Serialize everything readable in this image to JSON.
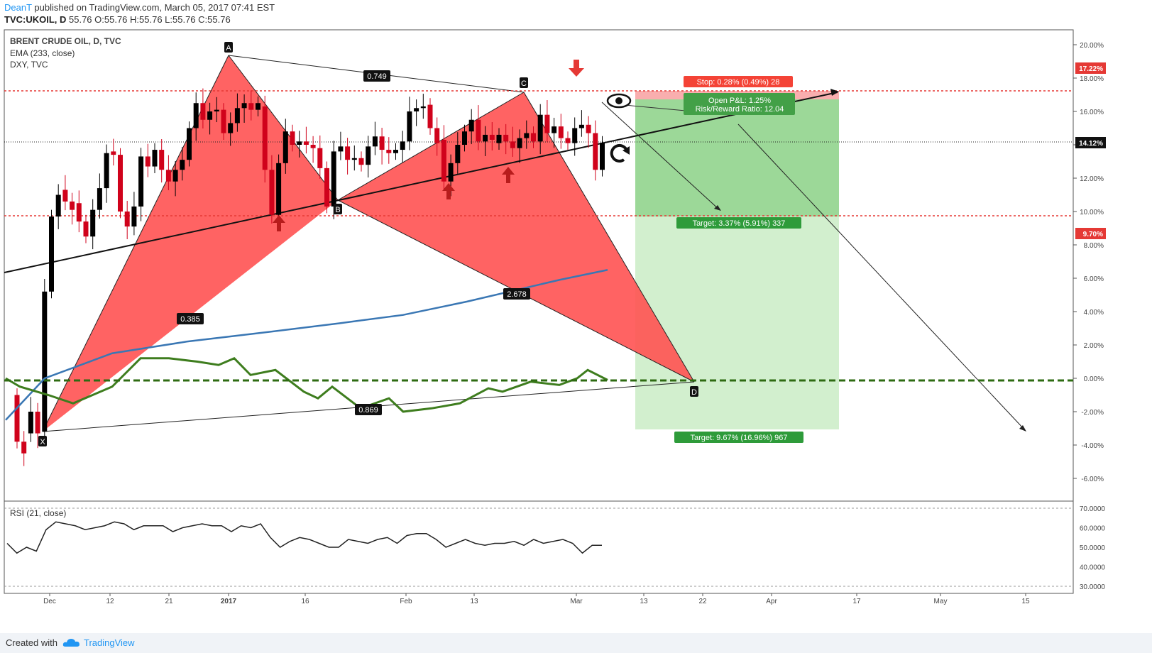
{
  "header": {
    "author": "DeanT",
    "published": " published on TradingView.com, March 05, 2017 07:41 EST",
    "symbol": "TVC:UKOIL, D",
    "ohlc": " 55.76 O:55.76 H:55.76 L:55.76 C:55.76"
  },
  "legend": {
    "title": "BRENT CRUDE OIL, D, TVC",
    "ema": "EMA (233, close)",
    "dxy": "DXY, TVC"
  },
  "rsi_label": "RSI (21, close)",
  "footer": {
    "created": "Created with",
    "brand": "TradingView"
  },
  "colors": {
    "up_candle": "#000000",
    "down_candle": "#d0021b",
    "pattern_fill": "#ff5252",
    "ema": "#3a77b4",
    "dxy": "#3e7d1e",
    "profit": "#4caf50",
    "stop": "#f44336",
    "rsi": "#222222"
  },
  "annotations": {
    "points": {
      "X": "X",
      "A": "A",
      "B": "B",
      "C": "C",
      "D": "D"
    },
    "ratios": {
      "xa_b": "0.385",
      "ac": "0.749",
      "bd": "2.678",
      "xd": "0.869"
    },
    "stop": "Stop: 0.28% (0.49%) 28",
    "pnl": "Open P&L: 1.25%",
    "rr": "Risk/Reward Ratio: 12.04",
    "target1": "Target: 3.37% (5.91%) 337",
    "target2": "Target: 9.67% (16.96%) 967",
    "price_tags": [
      "17.22%",
      "14.12%",
      "9.70%"
    ],
    "icons": [
      "eye-icon",
      "rotate-icon",
      "arrow-down-icon",
      "arrow-up-icon"
    ]
  },
  "chart_data": {
    "type": "candlestick",
    "title": "BRENT CRUDE OIL, D, TVC",
    "y_axis": {
      "unit": "%",
      "range": [
        -7,
        21
      ],
      "ticks": [
        "20.00%",
        "18.00%",
        "16.00%",
        "14.00%",
        "12.00%",
        "10.00%",
        "8.00%",
        "6.00%",
        "4.00%",
        "2.00%",
        "0.00%",
        "-2.00%",
        "-4.00%",
        "-6.00%"
      ]
    },
    "x_ticks": [
      "Dec",
      "12",
      "21",
      "2017",
      "16",
      "Feb",
      "13",
      "Mar",
      "13",
      "22",
      "Apr",
      "17",
      "May",
      "15"
    ],
    "candles": [
      [
        -1,
        -3.8
      ],
      [
        -3.8,
        -4.5
      ],
      [
        -3.3,
        -2
      ],
      [
        -2,
        -3.3
      ],
      [
        -3.2,
        5.2
      ],
      [
        5.2,
        9.7
      ],
      [
        9.7,
        11
      ],
      [
        11.3,
        10.6
      ],
      [
        10.6,
        10.1
      ],
      [
        10.5,
        9.4
      ],
      [
        9.4,
        8.5
      ],
      [
        8.5,
        10.1
      ],
      [
        10.1,
        11.4
      ],
      [
        11.4,
        13.5
      ],
      [
        13.6,
        13.4
      ],
      [
        13.4,
        10
      ],
      [
        10,
        9.1
      ],
      [
        9.1,
        10.3
      ],
      [
        10.3,
        13.3
      ],
      [
        13.3,
        12.7
      ],
      [
        12.7,
        13.7
      ],
      [
        13.7,
        12.5
      ],
      [
        12.5,
        11.8
      ],
      [
        11.8,
        12.5
      ],
      [
        12.5,
        13.1
      ],
      [
        13.1,
        15
      ],
      [
        15,
        16.5
      ],
      [
        16.5,
        15.5
      ],
      [
        15.5,
        16
      ],
      [
        16,
        16.1
      ],
      [
        16.1,
        14.7
      ],
      [
        14.7,
        15.3
      ],
      [
        15.3,
        16.2
      ],
      [
        16.2,
        16.5
      ],
      [
        16.5,
        16.1
      ],
      [
        16.1,
        16.5
      ],
      [
        16.3,
        12.5
      ],
      [
        12.5,
        9.8
      ],
      [
        9.8,
        12.9
      ],
      [
        12.9,
        14.8
      ],
      [
        14.8,
        14
      ],
      [
        14,
        14.2
      ],
      [
        14.2,
        14
      ],
      [
        14,
        13.8
      ],
      [
        13.8,
        12.6
      ],
      [
        12.6,
        10.3
      ],
      [
        10.3,
        13.6
      ],
      [
        13.6,
        13.9
      ],
      [
        13.9,
        13.1
      ],
      [
        13.1,
        13.2
      ],
      [
        13.2,
        12.8
      ],
      [
        12.8,
        13.9
      ],
      [
        13.9,
        14.5
      ],
      [
        14.5,
        13.7
      ],
      [
        13.7,
        13.5
      ],
      [
        13.5,
        13.7
      ],
      [
        13.7,
        14.2
      ],
      [
        14.2,
        16
      ],
      [
        16,
        16.2
      ],
      [
        16.2,
        16.3
      ],
      [
        16.4,
        15
      ],
      [
        15,
        14.1
      ],
      [
        14.3,
        11.8
      ],
      [
        11.8,
        12.9
      ],
      [
        12.9,
        14
      ],
      [
        14,
        14.8
      ],
      [
        14.8,
        15.5
      ],
      [
        15.5,
        14.2
      ],
      [
        14.2,
        14.6
      ],
      [
        14.6,
        14.3
      ],
      [
        14.1,
        14.6
      ],
      [
        14.6,
        14.2
      ],
      [
        14.2,
        13.8
      ],
      [
        13.8,
        14.4
      ],
      [
        14.4,
        14.7
      ],
      [
        14.7,
        14.2
      ],
      [
        14.2,
        15.8
      ],
      [
        15.8,
        14.7
      ],
      [
        14.7,
        15.1
      ],
      [
        15.1,
        14.4
      ],
      [
        14.4,
        14.1
      ],
      [
        14.1,
        15
      ],
      [
        15,
        15.2
      ],
      [
        15.2,
        14.7
      ],
      [
        14.7,
        12.5
      ],
      [
        12.5,
        14.12
      ]
    ],
    "ema_233": [
      [
        0,
        -2.5
      ],
      [
        55,
        0
      ],
      [
        150,
        1.5
      ],
      [
        255,
        2.2
      ],
      [
        355,
        2.7
      ],
      [
        470,
        3.3
      ],
      [
        560,
        3.8
      ],
      [
        650,
        4.6
      ],
      [
        720,
        5.3
      ],
      [
        780,
        5.9
      ],
      [
        848,
        6.5
      ]
    ],
    "dxy": [
      [
        0,
        0
      ],
      [
        20,
        -0.5
      ],
      [
        60,
        -1
      ],
      [
        95,
        -1.5
      ],
      [
        150,
        -0.5
      ],
      [
        190,
        1.2
      ],
      [
        230,
        1.2
      ],
      [
        270,
        1
      ],
      [
        300,
        0.8
      ],
      [
        322,
        1.2
      ],
      [
        345,
        0.2
      ],
      [
        380,
        0.5
      ],
      [
        420,
        -0.8
      ],
      [
        440,
        -1.2
      ],
      [
        460,
        -0.5
      ],
      [
        500,
        -1.8
      ],
      [
        540,
        -1.2
      ],
      [
        560,
        -2
      ],
      [
        600,
        -1.8
      ],
      [
        640,
        -1.5
      ],
      [
        680,
        -0.6
      ],
      [
        700,
        -0.8
      ],
      [
        740,
        -0.2
      ],
      [
        780,
        -0.4
      ],
      [
        805,
        0
      ],
      [
        820,
        0.5
      ],
      [
        848,
        -0.1
      ]
    ],
    "rsi": {
      "range": [
        30,
        70
      ],
      "values": [
        52,
        47,
        50,
        48,
        59,
        63,
        62,
        61,
        59,
        60,
        61,
        63,
        62,
        59,
        61,
        61,
        61,
        58,
        60,
        61,
        62,
        61,
        61,
        58,
        61,
        60,
        62,
        55,
        50,
        53,
        55,
        54,
        52,
        50,
        50,
        54,
        53,
        52,
        54,
        55,
        52,
        56,
        57,
        57,
        54,
        50,
        52,
        54,
        52,
        51,
        52,
        52,
        53,
        51,
        54,
        52,
        53,
        54,
        52,
        47,
        51,
        51
      ]
    }
  }
}
